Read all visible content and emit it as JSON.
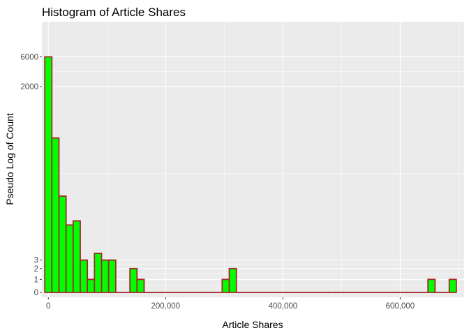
{
  "chart_data": {
    "type": "bar",
    "title": "Histogram of Article Shares",
    "xlabel": "Article Shares",
    "ylabel": "Pseudo Log of Count",
    "y_scale": "pseudo_log",
    "grid": true,
    "xlim": [
      -11000,
      709000
    ],
    "ylim": [
      -0.18,
      10.0
    ],
    "x_ticks": [
      {
        "value": 0,
        "label": "0"
      },
      {
        "value": 200000,
        "label": "200,000"
      },
      {
        "value": 400000,
        "label": "400,000"
      },
      {
        "value": 600000,
        "label": "600,000"
      }
    ],
    "y_ticks": [
      {
        "value": 0,
        "label": "0"
      },
      {
        "value": 1,
        "label": "1"
      },
      {
        "value": 2,
        "label": "2"
      },
      {
        "value": 3,
        "label": "3"
      },
      {
        "value": 2000,
        "label": "2000"
      },
      {
        "value": 6000,
        "label": "6000"
      }
    ],
    "bin_width": 12100,
    "bins_start": [
      -6050,
      6050,
      18150,
      30250,
      42350,
      54450,
      66550,
      78650,
      90750,
      102850,
      114950,
      127050,
      139150,
      151250,
      163350,
      175450,
      187550,
      199650,
      211750,
      223850,
      235950,
      248050,
      260150,
      272250,
      284350,
      296450,
      308550,
      320650,
      332750,
      344850,
      356950,
      369050,
      381150,
      393250,
      405350,
      417450,
      429550,
      441650,
      453750,
      465850,
      477950,
      490050,
      502150,
      514250,
      526350,
      538450,
      550550,
      562650,
      574750,
      586850,
      598950,
      611050,
      623150,
      635250,
      647350,
      659450,
      671550,
      683650
    ],
    "values": [
      6000,
      300,
      35,
      12,
      14,
      3,
      1,
      4,
      3,
      3,
      0,
      0,
      2,
      1,
      0,
      0,
      0,
      0,
      0,
      0,
      0,
      0,
      0,
      0,
      0,
      1,
      2,
      0,
      0,
      0,
      0,
      0,
      0,
      0,
      0,
      0,
      0,
      0,
      0,
      0,
      0,
      0,
      0,
      0,
      0,
      0,
      0,
      0,
      0,
      0,
      0,
      0,
      0,
      0,
      1,
      0,
      0,
      1
    ],
    "colors": {
      "fill": "#00ff00",
      "stroke": "#a52a2a",
      "panel": "#ebebeb",
      "grid": "#ffffff"
    }
  }
}
